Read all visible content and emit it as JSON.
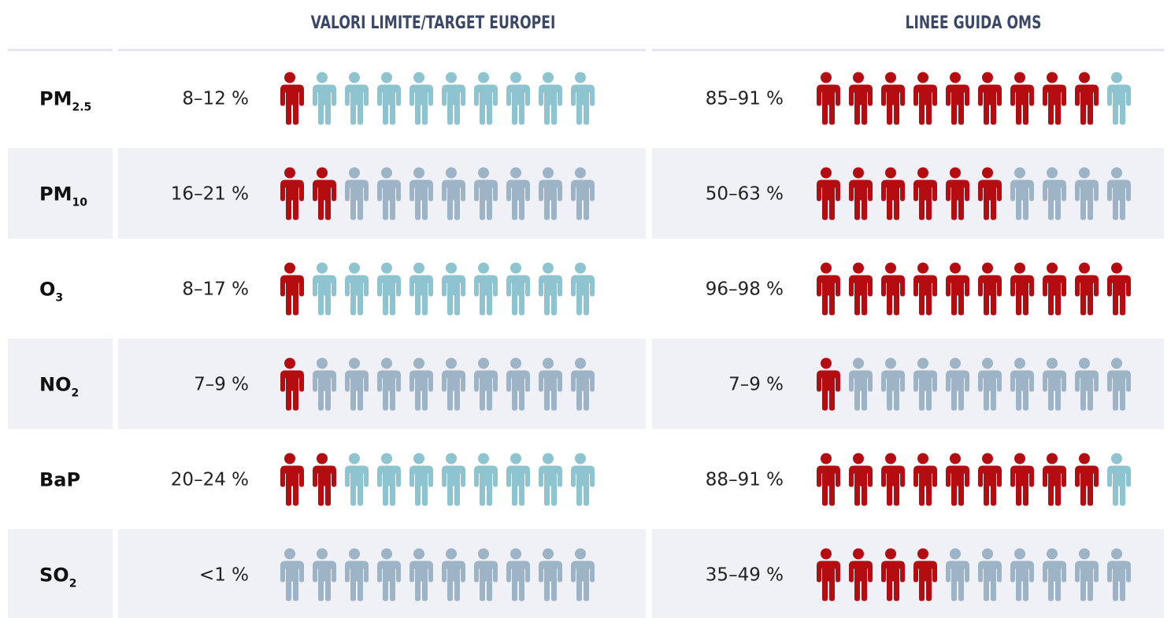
{
  "header": {
    "left": "VALORI LIMITE/TARGET EUROPEI",
    "right": "LINEE GUIDA OMS"
  },
  "icons_per_cell": 10,
  "rows": [
    {
      "pollutant": "PM",
      "sub": "2.5",
      "eu": "8–12 %",
      "eu_red": 1,
      "who": "85–91 %",
      "who_red": 9
    },
    {
      "pollutant": "PM",
      "sub": "10",
      "eu": "16–21 %",
      "eu_red": 2,
      "who": "50–63 %",
      "who_red": 6
    },
    {
      "pollutant": "O",
      "sub": "3",
      "eu": "8–17 %",
      "eu_red": 1,
      "who": "96–98 %",
      "who_red": 10
    },
    {
      "pollutant": "NO",
      "sub": "2",
      "eu": "7–9 %",
      "eu_red": 1,
      "who": "7–9 %",
      "who_red": 1
    },
    {
      "pollutant": "BaP",
      "eu": "20–24 %",
      "eu_red": 2,
      "who": "88–91 %",
      "who_red": 9
    },
    {
      "pollutant": "SO",
      "sub": "2",
      "eu": "<1 %",
      "eu_red": 0,
      "who": "35–49 %",
      "who_red": 4
    }
  ]
}
